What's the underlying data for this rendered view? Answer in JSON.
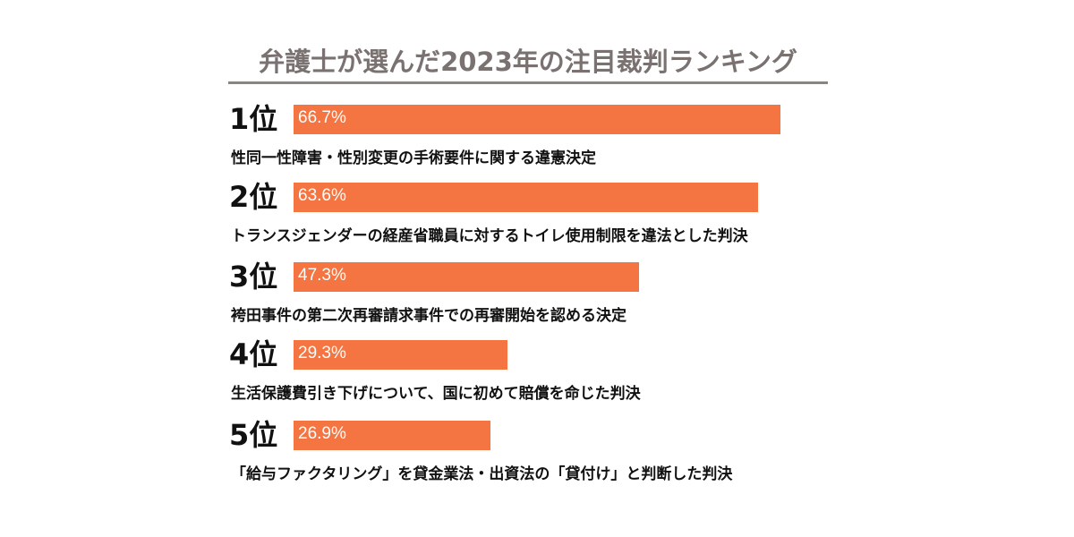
{
  "chart_data": {
    "type": "bar",
    "orientation": "horizontal",
    "title": "弁護士が選んだ2023年の注目裁判ランキング",
    "bar_color": "#f47442",
    "title_color": "#7a7270",
    "xlim": [
      0,
      100
    ],
    "grid": false,
    "items": [
      {
        "rank": "1位",
        "value": 66.7,
        "label": "66.7%",
        "description": "性同一性障害・性別変更の手術要件に関する違憲決定"
      },
      {
        "rank": "2位",
        "value": 63.6,
        "label": "63.6%",
        "description": "トランスジェンダーの経産省職員に対するトイレ使用制限を違法とした判決"
      },
      {
        "rank": "3位",
        "value": 47.3,
        "label": "47.3%",
        "description": "袴田事件の第二次再審請求事件での再審開始を認める決定"
      },
      {
        "rank": "4位",
        "value": 29.3,
        "label": "29.3%",
        "description": "生活保護費引き下げについて、国に初めて賠償を命じた判決"
      },
      {
        "rank": "5位",
        "value": 26.9,
        "label": "26.9%",
        "description": "「給与ファクタリング」を貸金業法・出資法の「貸付け」と判断した判決"
      }
    ]
  }
}
